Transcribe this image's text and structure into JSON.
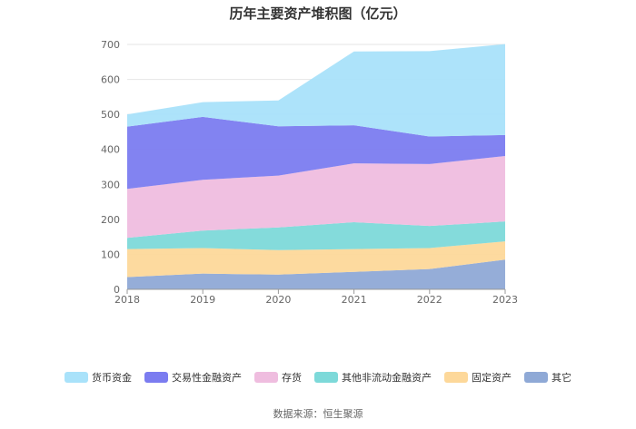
{
  "chart_data": {
    "type": "area",
    "stacked": true,
    "title": "历年主要资产堆积图（亿元）",
    "x": [
      "2018",
      "2019",
      "2020",
      "2021",
      "2022",
      "2023"
    ],
    "ylim": [
      0,
      700
    ],
    "yticks": [
      "0",
      "100",
      "200",
      "300",
      "400",
      "500",
      "600",
      "700"
    ],
    "yticks_values": [
      0,
      100,
      200,
      300,
      400,
      500,
      600,
      700
    ],
    "grid": true,
    "legend_position": "bottom",
    "series": [
      {
        "name": "其它",
        "values": [
          35,
          45,
          42,
          50,
          58,
          85
        ],
        "color": "#8fa9d6"
      },
      {
        "name": "固定资产",
        "values": [
          80,
          73,
          70,
          65,
          60,
          52
        ],
        "color": "#fdd89a"
      },
      {
        "name": "其他非流动金融资产",
        "values": [
          32,
          50,
          65,
          77,
          63,
          57
        ],
        "color": "#7dd9d9"
      },
      {
        "name": "存货",
        "values": [
          140,
          145,
          148,
          168,
          177,
          187
        ],
        "color": "#efbddf"
      },
      {
        "name": "交易性金融资产",
        "values": [
          178,
          180,
          141,
          109,
          79,
          60
        ],
        "color": "#7b7cf0"
      },
      {
        "name": "货币资金",
        "values": [
          35,
          42,
          74,
          211,
          244,
          260
        ],
        "color": "#a9e2fa"
      }
    ],
    "legend_order": [
      "货币资金",
      "交易性金融资产",
      "存货",
      "其他非流动金融资产",
      "固定资产",
      "其它"
    ]
  },
  "source": "数据来源：恒生聚源"
}
